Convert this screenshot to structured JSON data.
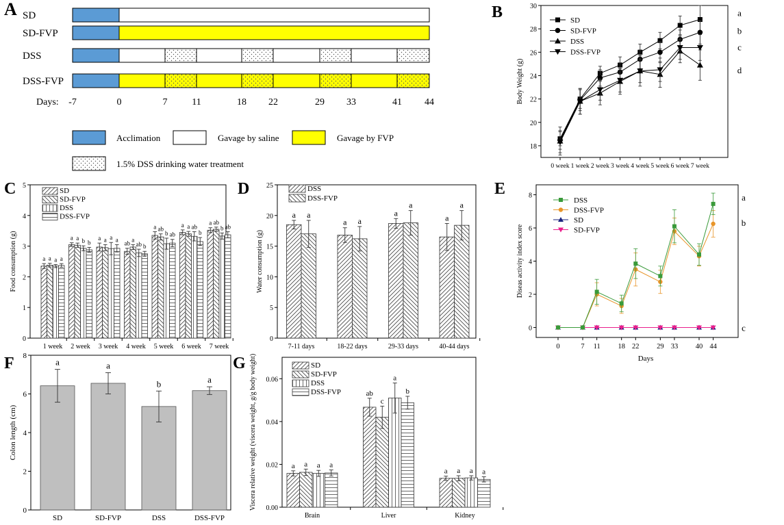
{
  "panel_labels": {
    "A": "A",
    "B": "B",
    "C": "C",
    "D": "D",
    "E": "E",
    "F": "F",
    "G": "G"
  },
  "colors": {
    "acclimation": "#5b9bd5",
    "fvp": "#ffff00",
    "dss_green": "#3a9a3a",
    "dss_fvp_orange": "#e8952a",
    "sd_blue": "#1a237e",
    "sd_fvp_magenta": "#e91e8c",
    "bar_gray": "#bfbfbf"
  },
  "chart_data": [
    {
      "panel": "A",
      "type": "timeline",
      "groups": [
        "SD",
        "SD-FVP",
        "DSS",
        "DSS-FVP"
      ],
      "days_label": "Days:",
      "ticks": [
        -7,
        0,
        7,
        11,
        18,
        22,
        29,
        33,
        41,
        44
      ],
      "legend": {
        "acclimation": "Acclimation",
        "saline": "Gavage by saline",
        "fvp": "Gavage by FVP",
        "dss": "1.5% DSS drinking water treatment"
      },
      "dss_periods": [
        [
          7,
          11
        ],
        [
          18,
          22
        ],
        [
          29,
          33
        ],
        [
          41,
          44
        ]
      ]
    },
    {
      "panel": "B",
      "type": "line",
      "x": [
        "0 week",
        "1 week",
        "2 week",
        "3 week",
        "4 week",
        "5 week",
        "6 week",
        "7 week"
      ],
      "ylabel": "Body Weight (g)",
      "ylim": [
        17,
        30
      ],
      "yticks": [
        18,
        20,
        22,
        24,
        26,
        28,
        30
      ],
      "legend_position": "top-left",
      "series": [
        {
          "name": "SD",
          "marker": "square",
          "values": [
            18.6,
            22.0,
            24.2,
            24.9,
            26.0,
            27.0,
            28.3,
            28.8
          ],
          "errors": [
            0.6,
            0.8,
            0.6,
            0.7,
            0.7,
            0.7,
            0.8,
            1.2
          ],
          "letter": "a"
        },
        {
          "name": "SD-FVP",
          "marker": "circle",
          "values": [
            18.5,
            21.9,
            23.8,
            24.3,
            25.4,
            26.0,
            27.1,
            27.7
          ],
          "errors": [
            0.8,
            0.9,
            0.7,
            0.8,
            0.8,
            0.9,
            0.8,
            1.0
          ],
          "letter": "b"
        },
        {
          "name": "DSS",
          "marker": "triangle-up",
          "values": [
            18.4,
            21.8,
            22.5,
            23.5,
            24.4,
            24.1,
            26.1,
            24.9
          ],
          "errors": [
            1.2,
            1.1,
            1.0,
            1.1,
            1.3,
            1.1,
            1.0,
            1.3
          ],
          "letter": "d"
        },
        {
          "name": "DSS-FVP",
          "marker": "triangle-down",
          "values": [
            18.3,
            21.8,
            22.8,
            23.6,
            24.4,
            24.5,
            26.4,
            26.4
          ],
          "errors": [
            0.9,
            1.1,
            0.9,
            1.0,
            1.0,
            1.0,
            1.0,
            1.1
          ],
          "letter": "c"
        }
      ]
    },
    {
      "panel": "C",
      "type": "bar",
      "categories": [
        "1 week",
        "2 week",
        "3 week",
        "4 week",
        "5 week",
        "6 week",
        "7 week"
      ],
      "ylabel": "Food consumption (g)",
      "ylim": [
        0,
        5
      ],
      "yticks": [
        0,
        1,
        2,
        3,
        4,
        5
      ],
      "series": [
        {
          "name": "SD",
          "pattern": "diag-right",
          "values": [
            2.35,
            3.05,
            2.97,
            2.83,
            3.35,
            3.45,
            3.52
          ],
          "errors": [
            0.08,
            0.06,
            0.13,
            0.1,
            0.12,
            0.08,
            0.08
          ],
          "letters": [
            "a",
            "a",
            "a",
            "ab",
            "a",
            "a",
            "a"
          ]
        },
        {
          "name": "SD-FVP",
          "pattern": "diag-left",
          "values": [
            2.38,
            3.03,
            2.95,
            2.97,
            3.3,
            3.4,
            3.55
          ],
          "errors": [
            0.06,
            0.07,
            0.1,
            0.08,
            0.1,
            0.08,
            0.07
          ],
          "letters": [
            "a",
            "a",
            "a",
            "a",
            "ab",
            "a",
            "ab"
          ]
        },
        {
          "name": "DSS",
          "pattern": "vertical",
          "values": [
            2.35,
            2.93,
            2.92,
            2.78,
            3.08,
            3.32,
            3.33
          ],
          "errors": [
            0.05,
            0.08,
            0.2,
            0.12,
            0.18,
            0.15,
            0.1
          ],
          "letters": [
            "a",
            "b",
            "a",
            "ab",
            "b",
            "ab",
            "b"
          ]
        },
        {
          "name": "DSS-FVP",
          "pattern": "horizontal",
          "values": [
            2.37,
            2.88,
            2.93,
            2.75,
            3.1,
            3.15,
            3.37
          ],
          "errors": [
            0.06,
            0.08,
            0.12,
            0.08,
            0.12,
            0.13,
            0.1
          ],
          "letters": [
            "a",
            "b",
            "a",
            "b",
            "ab",
            "b",
            "ab"
          ]
        }
      ],
      "legend_position": "top-left"
    },
    {
      "panel": "D",
      "type": "bar",
      "categories": [
        "7-11 days",
        "18-22 days",
        "29-33 days",
        "40-44 days"
      ],
      "ylabel": "Water consumption (g)",
      "ylim": [
        0,
        25
      ],
      "yticks": [
        0,
        5,
        10,
        15,
        20,
        25
      ],
      "series": [
        {
          "name": "DSS",
          "pattern": "diag-right",
          "values": [
            18.5,
            16.8,
            18.7,
            16.5
          ],
          "errors": [
            0.7,
            1.2,
            0.8,
            2.2
          ],
          "letters": [
            "a",
            "a",
            "a",
            "a"
          ]
        },
        {
          "name": "DSS-FVP",
          "pattern": "diag-left",
          "values": [
            17.0,
            16.2,
            18.8,
            18.4
          ],
          "errors": [
            2.2,
            2.0,
            2.0,
            2.4
          ],
          "letters": [
            "a",
            "a",
            "a",
            "a"
          ]
        }
      ],
      "legend_position": "top-left"
    },
    {
      "panel": "E",
      "type": "line",
      "xlabel": "Days",
      "ylabel": "Diseas activity index score",
      "x": [
        0,
        7,
        11,
        18,
        22,
        29,
        33,
        40,
        44
      ],
      "ylim": [
        -0.6,
        8.6
      ],
      "yticks": [
        0,
        2,
        4,
        6,
        8
      ],
      "legend_position": "top-left",
      "series": [
        {
          "name": "DSS",
          "color": "#3a9a3a",
          "values": [
            0,
            0,
            2.15,
            1.45,
            3.85,
            3.1,
            6.1,
            4.4,
            7.45
          ],
          "errors": [
            0,
            0,
            0.75,
            0.5,
            0.9,
            0.6,
            1.0,
            0.65,
            0.65
          ],
          "letter": "a"
        },
        {
          "name": "DSS-FVP",
          "color": "#e8952a",
          "values": [
            0,
            0,
            2.0,
            1.3,
            3.5,
            2.75,
            5.8,
            4.3,
            6.25
          ],
          "errors": [
            0,
            0,
            0.7,
            0.45,
            1.0,
            0.7,
            0.8,
            0.6,
            0.8
          ],
          "letter": "b"
        },
        {
          "name": "SD",
          "color": "#1a237e",
          "values": [
            0,
            0,
            0,
            0,
            0,
            0,
            0,
            0,
            0
          ],
          "errors": [
            0,
            0,
            0,
            0,
            0,
            0,
            0,
            0,
            0
          ],
          "letter": ""
        },
        {
          "name": "SD-FVP",
          "color": "#e91e8c",
          "values": [
            0,
            0,
            0,
            0,
            0,
            0,
            0,
            0,
            0
          ],
          "errors": [
            0,
            0,
            0,
            0,
            0,
            0,
            0,
            0,
            0
          ],
          "letter": "c"
        }
      ]
    },
    {
      "panel": "F",
      "type": "bar",
      "categories": [
        "SD",
        "SD-FVP",
        "DSS",
        "DSS-FVP"
      ],
      "ylabel": "Colon length (cm)",
      "ylim": [
        0,
        8
      ],
      "yticks": [
        0,
        2,
        4,
        6,
        8
      ],
      "values": [
        6.42,
        6.55,
        5.35,
        6.17
      ],
      "errors": [
        0.85,
        0.55,
        0.8,
        0.2
      ],
      "letters": [
        "a",
        "a",
        "b",
        "a"
      ]
    },
    {
      "panel": "G",
      "type": "bar",
      "categories": [
        "Brain",
        "Liver",
        "Kidney"
      ],
      "ylabel": "Viscera relative weight (viscera weight, g/g body weight)",
      "ylim": [
        0,
        0.07
      ],
      "yticks": [
        0.0,
        0.02,
        0.04,
        0.06
      ],
      "ytick_labels": [
        "0.00",
        "0.02",
        "0.04",
        "0.06"
      ],
      "series": [
        {
          "name": "SD",
          "pattern": "diag-right",
          "values": [
            0.0158,
            0.0467,
            0.0135
          ],
          "errors": [
            0.0012,
            0.0042,
            0.001
          ],
          "letters": [
            "a",
            "ab",
            "a"
          ]
        },
        {
          "name": "SD-FVP",
          "pattern": "diag-left",
          "values": [
            0.0163,
            0.042,
            0.0135
          ],
          "errors": [
            0.0015,
            0.0052,
            0.0012
          ],
          "letters": [
            "a",
            "c",
            "a"
          ]
        },
        {
          "name": "DSS",
          "pattern": "vertical",
          "values": [
            0.0158,
            0.051,
            0.0137
          ],
          "errors": [
            0.0014,
            0.007,
            0.001
          ],
          "letters": [
            "a",
            "a",
            "a"
          ]
        },
        {
          "name": "DSS-FVP",
          "pattern": "horizontal",
          "values": [
            0.016,
            0.0488,
            0.013
          ],
          "errors": [
            0.0014,
            0.003,
            0.0012
          ],
          "letters": [
            "a",
            "b",
            "a"
          ]
        }
      ],
      "legend_position": "top-left"
    }
  ]
}
